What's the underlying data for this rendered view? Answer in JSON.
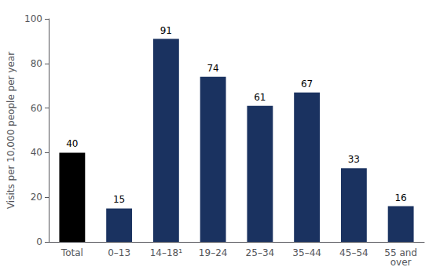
{
  "chart_data": {
    "type": "bar",
    "categories": [
      "Total",
      "0–13",
      "14–18¹",
      "19–24",
      "25–34",
      "35–44",
      "45–54",
      "55 and\nover"
    ],
    "values": [
      40,
      15,
      91,
      74,
      61,
      67,
      33,
      16
    ],
    "colors": [
      "#000000",
      "#1a3260",
      "#1a3260",
      "#1a3260",
      "#1a3260",
      "#1a3260",
      "#1a3260",
      "#1a3260"
    ],
    "ylabel": "Visits per 10,000 people per year",
    "ylim": [
      0,
      100
    ],
    "yticks": [
      0,
      20,
      40,
      60,
      80,
      100
    ],
    "grid": false,
    "data_labels": true
  }
}
